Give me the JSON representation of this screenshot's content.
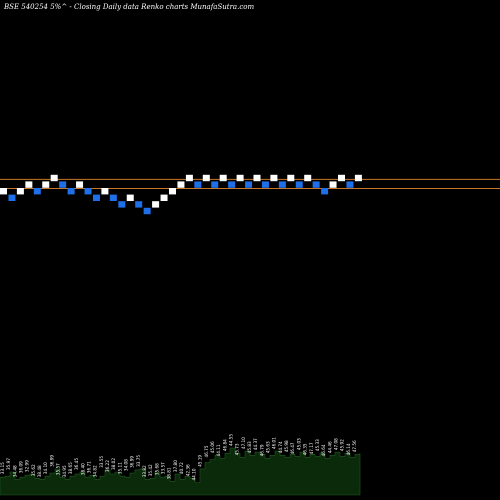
{
  "chart_data": {
    "type": "renko",
    "title": "BSE 540254 5%^ - Closing Daily data Renko charts MunafaSutra.com",
    "xlabel": "",
    "ylabel": "",
    "grid": false,
    "colors": {
      "up": "#ffffff",
      "down": "#1e6fe8",
      "reference_line": "#c8762a",
      "volume": "#0a2a0a",
      "volume_edge": "#1f5a1f",
      "label": "#ffffff"
    },
    "brick_levels": [
      26,
      25,
      26,
      27,
      26,
      27,
      28,
      27,
      26,
      27,
      26,
      25,
      26,
      25,
      24,
      25,
      24,
      23,
      24,
      25,
      26,
      27,
      28,
      27,
      28,
      27,
      28,
      27,
      28,
      27,
      28,
      27,
      28,
      27,
      28,
      27,
      28,
      27,
      26,
      27,
      28,
      27,
      28
    ],
    "reference_lines": [
      27.8,
      26.4
    ],
    "volumes": [
      17,
      18,
      22,
      15,
      17,
      19,
      20,
      16,
      15,
      18,
      21,
      25,
      17,
      15,
      18,
      20,
      22,
      17,
      19,
      15,
      18,
      24,
      20,
      22,
      18,
      17,
      21,
      24,
      25,
      15,
      16,
      22,
      17,
      18,
      13,
      20,
      15,
      18,
      16,
      12,
      25,
      31,
      34,
      38,
      35,
      40,
      45,
      40,
      36,
      42,
      38,
      41,
      39,
      35,
      38,
      42,
      38,
      36,
      39,
      37,
      41,
      36,
      39,
      37,
      40,
      35,
      38,
      41,
      37,
      40,
      36,
      39,
      40
    ],
    "volume_labels": [
      "33.15",
      "35.97",
      "34.48",
      "36.09",
      "32.99",
      "35.62",
      "38.48",
      "34.10",
      "36.99",
      "35.57",
      "34.95",
      "38.65",
      "36.45",
      "38.40",
      "36.71",
      "34.82",
      "33.55",
      "36.22",
      "38.02",
      "35.11",
      "34.08",
      "36.99",
      "33.75",
      "33.82",
      "35.42",
      "35.68",
      "33.57",
      "38.81",
      "37.80",
      "40.72",
      "42.36",
      "44.10",
      "45.19",
      "46.75",
      "45.06",
      "44.11",
      "46.84",
      "44.55",
      "45.73",
      "47.10",
      "45.83",
      "44.37",
      "46.79",
      "45.63",
      "46.01",
      "44.74",
      "45.98",
      "46.47",
      "45.03",
      "46.35",
      "47.17",
      "45.33",
      "46.64",
      "44.46",
      "47.08",
      "45.92",
      "46.14",
      "47.56"
    ]
  }
}
